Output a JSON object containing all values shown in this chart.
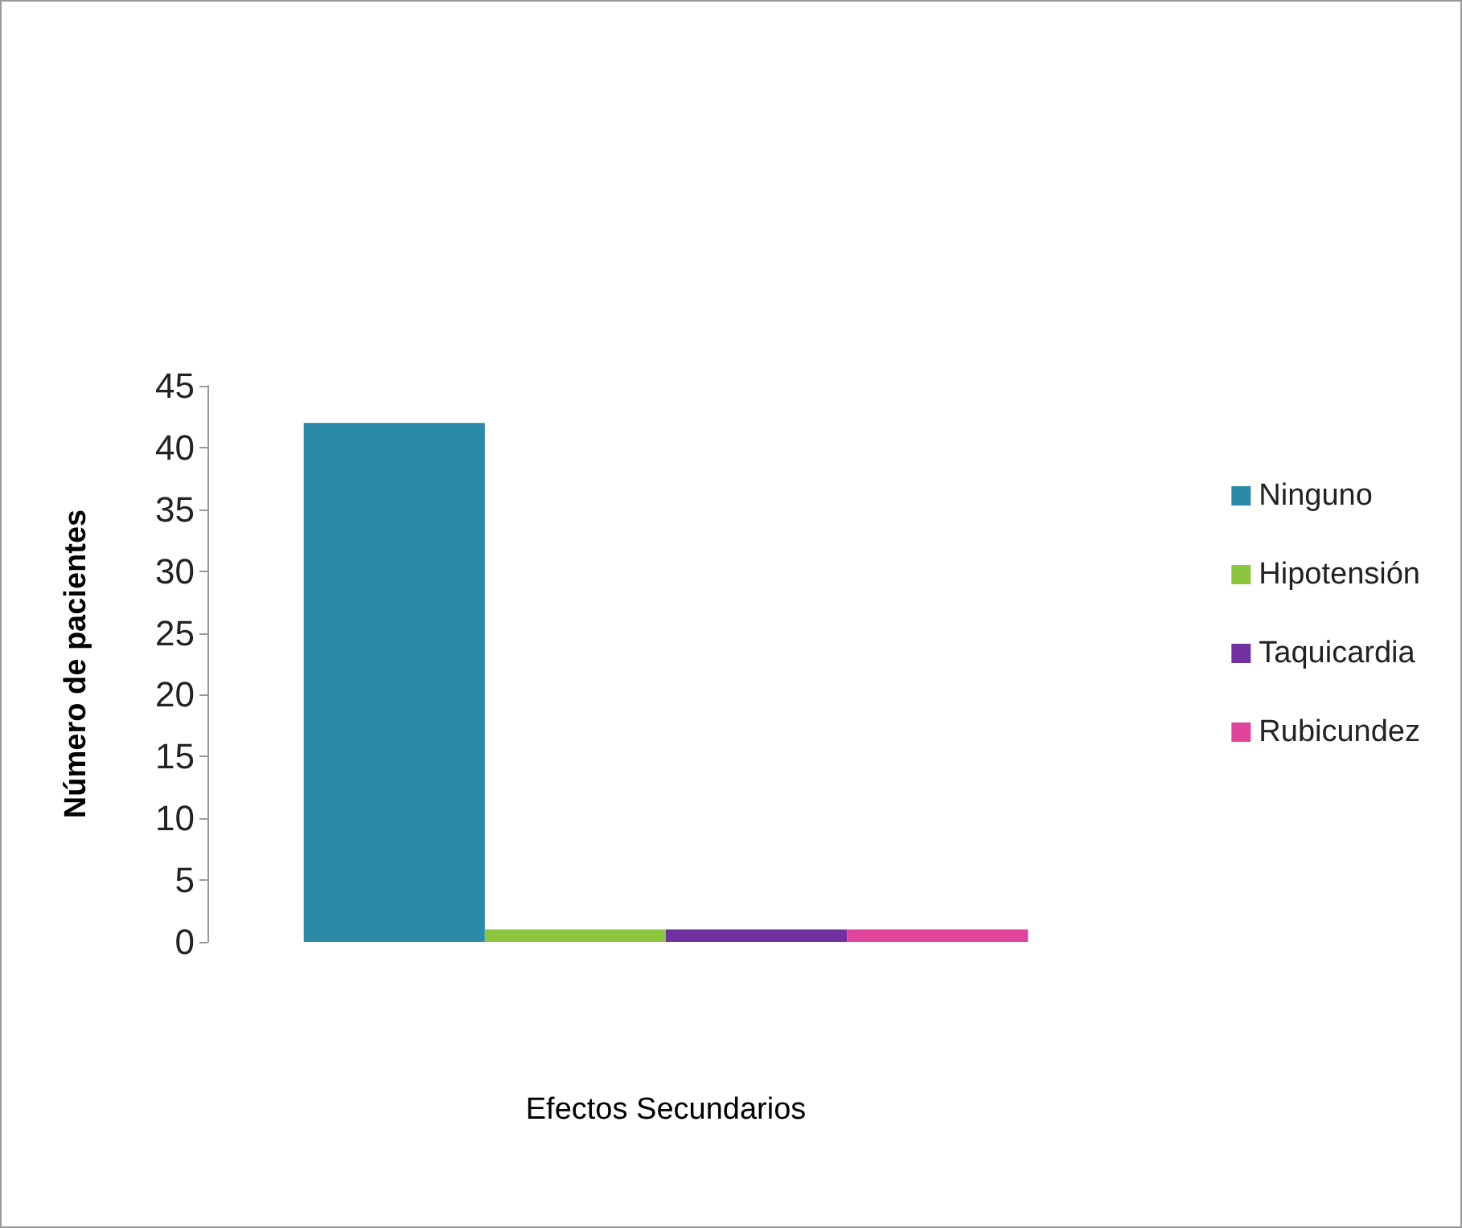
{
  "chart_data": {
    "type": "bar",
    "xlabel": "Efectos Secundarios",
    "ylabel": "Número de pacientes",
    "categories": [
      null
    ],
    "series": [
      {
        "name": "Ninguno",
        "color": "#2a8aa8",
        "values": [
          42
        ]
      },
      {
        "name": "Hipotensión",
        "color": "#8cc63f",
        "values": [
          1
        ]
      },
      {
        "name": "Taquicardia",
        "color": "#7030a0",
        "values": [
          1
        ]
      },
      {
        "name": "Rubicundez",
        "color": "#e0449a",
        "values": [
          1
        ]
      }
    ],
    "ylim": [
      0,
      45
    ],
    "yticks": [
      0,
      5,
      10,
      15,
      20,
      25,
      30,
      35,
      40,
      45
    ],
    "grid": false,
    "legend": "right"
  }
}
